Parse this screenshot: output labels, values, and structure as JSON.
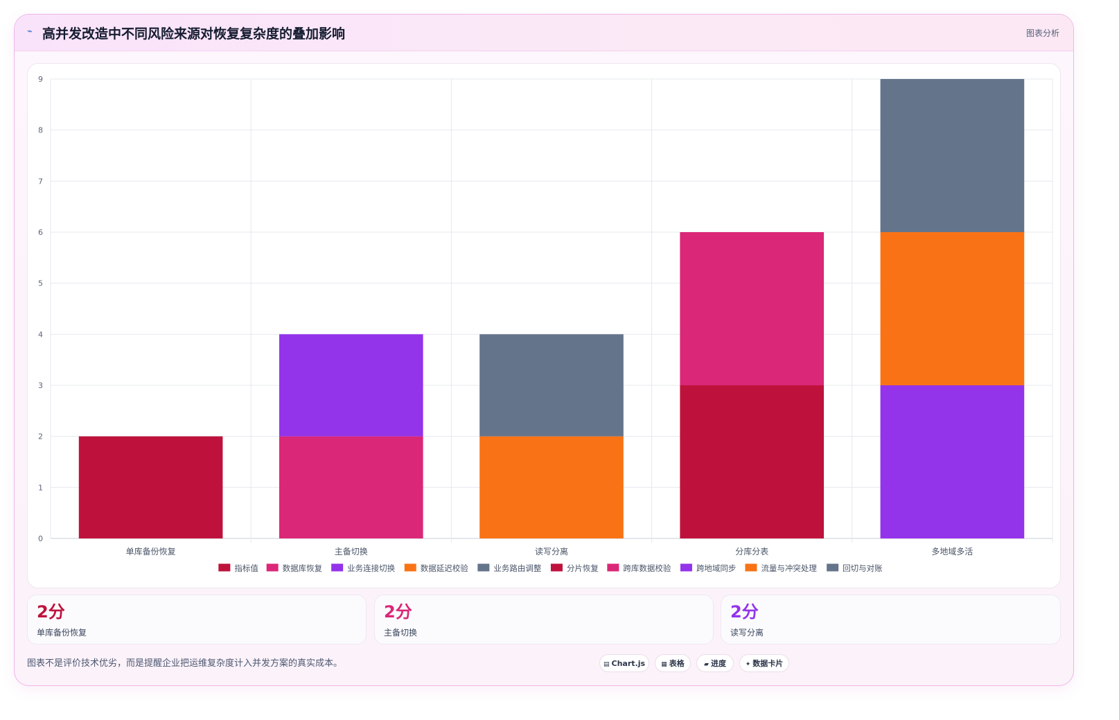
{
  "header": {
    "icon": "chart-icon",
    "title": "高并发改造中不同风险来源对恢复复杂度的叠加影响",
    "tag": "图表分析"
  },
  "chart_data": {
    "type": "bar",
    "stacked": true,
    "categories": [
      "单库备份恢复",
      "主备切换",
      "读写分离",
      "分库分表",
      "多地域多活"
    ],
    "ylim": [
      0,
      9
    ],
    "yticks": [
      0,
      1,
      2,
      3,
      4,
      5,
      6,
      7,
      8,
      9
    ],
    "grid": true,
    "legend_position": "bottom",
    "series": [
      {
        "name": "指标值",
        "color": "#be123c",
        "values": [
          2,
          0,
          0,
          0,
          0
        ]
      },
      {
        "name": "数据库恢复",
        "color": "#db2777",
        "values": [
          0,
          2,
          0,
          0,
          0
        ]
      },
      {
        "name": "业务连接切换",
        "color": "#9333ea",
        "values": [
          0,
          2,
          0,
          0,
          0
        ]
      },
      {
        "name": "数据延迟校验",
        "color": "#f97316",
        "values": [
          0,
          0,
          2,
          0,
          0
        ]
      },
      {
        "name": "业务路由调整",
        "color": "#64748b",
        "values": [
          0,
          0,
          2,
          0,
          0
        ]
      },
      {
        "name": "分片恢复",
        "color": "#be123c",
        "values": [
          0,
          0,
          0,
          3,
          0
        ]
      },
      {
        "name": "跨库数据校验",
        "color": "#db2777",
        "values": [
          0,
          0,
          0,
          3,
          0
        ]
      },
      {
        "name": "跨地域同步",
        "color": "#9333ea",
        "values": [
          0,
          0,
          0,
          0,
          3
        ]
      },
      {
        "name": "流量与冲突处理",
        "color": "#f97316",
        "values": [
          0,
          0,
          0,
          0,
          3
        ]
      },
      {
        "name": "回切与对账",
        "color": "#64748b",
        "values": [
          0,
          0,
          0,
          0,
          3
        ]
      }
    ]
  },
  "stats": [
    {
      "value": "2分",
      "label": "单库备份恢复",
      "color": "#be123c"
    },
    {
      "value": "2分",
      "label": "主备切换",
      "color": "#db2777"
    },
    {
      "value": "2分",
      "label": "读写分离",
      "color": "#9333ea"
    }
  ],
  "footnote": "图表不是评价技术优劣，而是提醒企业把运维复杂度计入并发方案的真实成本。",
  "chips": [
    {
      "icon": "▤",
      "label": "Chart.js"
    },
    {
      "icon": "▦",
      "label": "表格"
    },
    {
      "icon": "▰",
      "label": "进度"
    },
    {
      "icon": "✦",
      "label": "数据卡片"
    }
  ]
}
